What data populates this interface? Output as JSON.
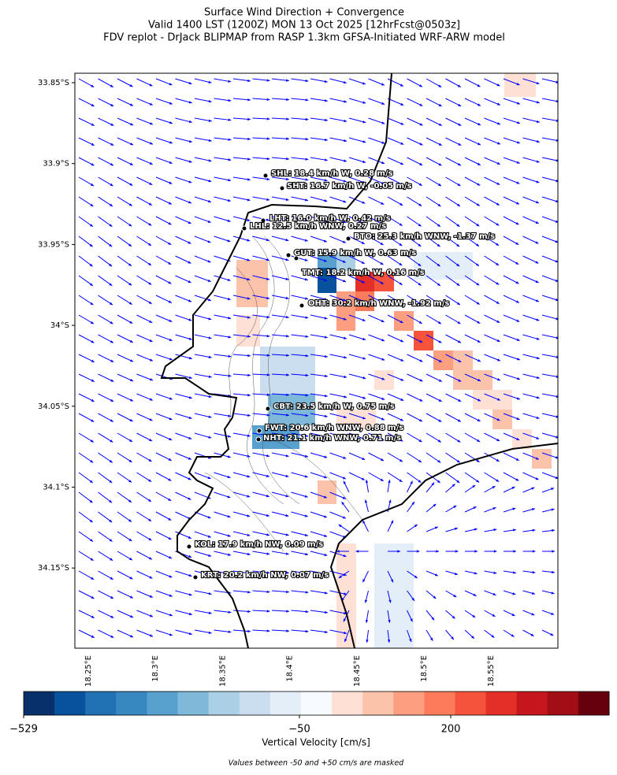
{
  "title": [
    "Surface Wind Direction + Convergence",
    "Valid 1400 LST (1200Z) MON 13 Oct 2025 [12hrFcst@0503z]",
    "FDV replot - DrJack BLIPMAP from RASP 1.3km GFSA-Initiated WRF-ARW model"
  ],
  "map": {
    "lat_ticks": [
      "33.85°S",
      "33.9°S",
      "33.95°S",
      "34°S",
      "34.05°S",
      "34.1°S",
      "34.15°S"
    ],
    "lon_ticks": [
      "18.25°E",
      "18.3°E",
      "18.35°E",
      "18.4°E",
      "18.45°E",
      "18.5°E",
      "18.55°E"
    ],
    "stations": [
      "SHL: 18.4 km/h W, 0.28 m/s",
      "SHT: 16.7 km/h W, -0.05 m/s",
      "LHT: 16.0 km/h W, 0.42 m/s",
      "LHL: 12.5 km/h WNW, 0.27 m/s",
      "BTO: 25.3 km/h WNW, -1.37 m/s",
      "GUT: 15.9 km/h W, 0.63 m/s",
      "TMT: 18.2 km/h W, 0.16 m/s",
      "OHT: 30.2 km/h WNW, -1.92 m/s",
      "CBT: 23.5 km/h W, 0.75 m/s",
      "FWT: 20.6 km/h WNW, 0.88 m/s",
      "NHT: 21.1 km/h WNW, 0.71 m/s",
      "KOL: 17.9 km/h NW, 0.09 m/s",
      "KRT: 20.2 km/h NW, 0.07 m/s"
    ],
    "arrow_color": "#0000ff"
  },
  "colorbar": {
    "label": "Vertical Velocity [cm/s]",
    "ticks": [
      "−529",
      "−50",
      "200"
    ],
    "colors": [
      "#08306b",
      "#08519c",
      "#2171b5",
      "#3787c0",
      "#58a1cf",
      "#7fb9da",
      "#abd0e6",
      "#cadef0",
      "#e3eef9",
      "#f7fbff",
      "#fee1d4",
      "#fcc3ab",
      "#fc9e80",
      "#fb7b5b",
      "#f5533b",
      "#e32f27",
      "#c4161c",
      "#a10e15",
      "#67000d"
    ]
  },
  "note": "Values between -50 and +50 cm/s are masked"
}
